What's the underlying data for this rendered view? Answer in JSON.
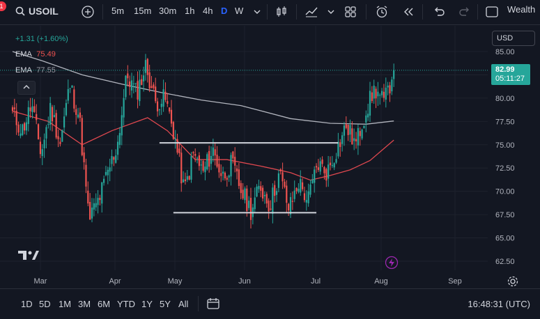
{
  "toolbar": {
    "notification_count": "1",
    "symbol": "USOIL",
    "intervals": [
      "5m",
      "15m",
      "30m",
      "1h",
      "4h",
      "D",
      "W"
    ],
    "active_interval": "D",
    "account": "Wealth"
  },
  "legend": {
    "change": "+1.31 (+1.60%)",
    "ema1_label": "EMA",
    "ema1_value": "75.49",
    "ema2_label": "EMA",
    "ema2_value": "77.55"
  },
  "price_scale": {
    "currency": "USD",
    "last_price": "82.99",
    "countdown": "05:11:27"
  },
  "bottom": {
    "ranges": [
      "1D",
      "5D",
      "1M",
      "3M",
      "6M",
      "YTD",
      "1Y",
      "5Y",
      "All"
    ],
    "clock": "16:48:31 (UTC)"
  },
  "colors": {
    "background": "#131722",
    "up": "#26a69a",
    "down": "#ef5350",
    "ema_fast": "#e0484f",
    "ema_slow": "#b2b5be",
    "active": "#2962ff"
  },
  "chart_data": {
    "type": "candlestick",
    "ylim": [
      61.5,
      86
    ],
    "yticks": [
      "85.00",
      "82.50",
      "80.00",
      "77.50",
      "75.00",
      "72.50",
      "70.00",
      "67.50",
      "65.00",
      "62.50"
    ],
    "xticks": [
      "Mar",
      "Apr",
      "May",
      "Jun",
      "Jul",
      "Aug",
      "Sep"
    ],
    "close_path": [
      78.3,
      76.5,
      79.3,
      74.0,
      79.0,
      75.2,
      81.5,
      78.0,
      67.0,
      69.0,
      72.0,
      75.0,
      82.5,
      80.5,
      83.5,
      79.5,
      80.0,
      76.0,
      70.0,
      74.0,
      72.0,
      74.5,
      71.5,
      73.0,
      70.0,
      68.0,
      70.5,
      68.5,
      72.0,
      68.0,
      71.0,
      69.0,
      73.0,
      72.0,
      74.5,
      77.0,
      75.0,
      78.5,
      81.0,
      79.5,
      82.99
    ],
    "ema_fast": [
      [
        0,
        78.6
      ],
      [
        18,
        77.5
      ],
      [
        35,
        75.0
      ],
      [
        50,
        76.5
      ],
      [
        68,
        77.9
      ],
      [
        78,
        76.5
      ],
      [
        92,
        73.4
      ],
      [
        108,
        73.4
      ],
      [
        125,
        72.7
      ],
      [
        140,
        72.0
      ],
      [
        150,
        71.2
      ],
      [
        160,
        71.7
      ],
      [
        170,
        72.3
      ],
      [
        180,
        73.3
      ],
      [
        192,
        75.5
      ]
    ],
    "ema_slow": [
      [
        0,
        85.0
      ],
      [
        15,
        84.0
      ],
      [
        35,
        82.5
      ],
      [
        55,
        81.5
      ],
      [
        75,
        80.6
      ],
      [
        95,
        79.8
      ],
      [
        115,
        79.2
      ],
      [
        140,
        77.8
      ],
      [
        160,
        77.3
      ],
      [
        178,
        77.2
      ],
      [
        192,
        77.55
      ]
    ],
    "levels": [
      {
        "from": 74,
        "to": 164,
        "price": 75.2
      },
      {
        "from": 81,
        "to": 153,
        "price": 67.7
      }
    ]
  }
}
